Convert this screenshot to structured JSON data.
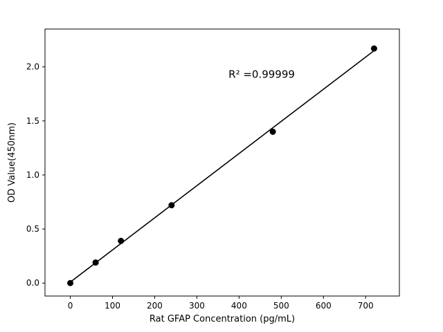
{
  "chart_data": {
    "type": "scatter",
    "title": "",
    "xlabel": "Rat GFAP Concentration (pg/mL)",
    "ylabel": "OD Value(450nm)",
    "x": [
      0,
      60,
      120,
      240,
      480,
      720
    ],
    "y": [
      0.0,
      0.19,
      0.39,
      0.72,
      1.4,
      2.17
    ],
    "xlim": [
      -60,
      780
    ],
    "ylim": [
      -0.12,
      2.35
    ],
    "xtick_values": [
      0,
      100,
      200,
      300,
      400,
      500,
      600,
      700
    ],
    "xtick_labels": [
      "0",
      "100",
      "200",
      "300",
      "400",
      "500",
      "600",
      "700"
    ],
    "ytick_values": [
      0.0,
      0.5,
      1.0,
      1.5,
      2.0
    ],
    "ytick_labels": [
      "0.0",
      "0.5",
      "1.0",
      "1.5",
      "2.0"
    ],
    "grid": false,
    "legend": null,
    "marker_color": "#000000",
    "line_color": "#000000",
    "background_color": "#ffffff",
    "trendline": {
      "x": [
        0,
        720
      ],
      "y": [
        0.009,
        2.15
      ]
    },
    "annotation": {
      "text": "R² =0.99999",
      "x": 375,
      "y": 1.9
    }
  }
}
